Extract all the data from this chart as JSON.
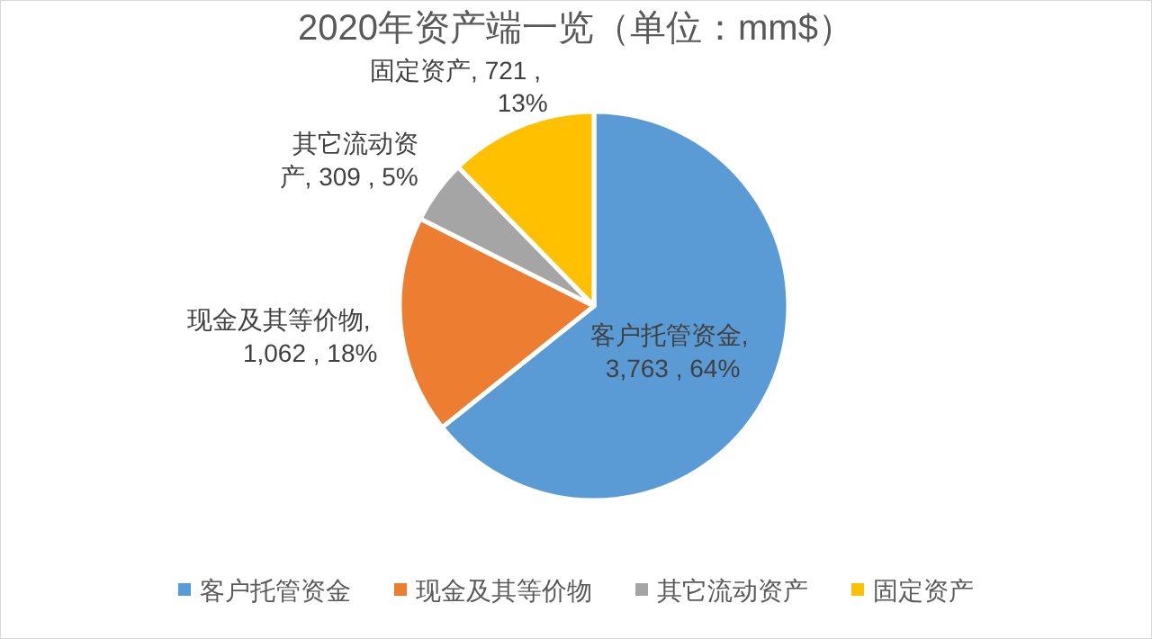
{
  "chart_data": {
    "type": "pie",
    "title": "2020年资产端一览（单位：mm$）",
    "categories": [
      "客户托管资金",
      "现金及其等价物",
      "其它流动资产",
      "固定资产"
    ],
    "values": [
      3763,
      1062,
      309,
      721
    ],
    "colors": [
      "#5b9bd5",
      "#ed7d31",
      "#a5a5a5",
      "#ffc000"
    ],
    "value_labels": [
      "客户托管资金, 3,763 , 64%",
      "现金及其等价物, 1,062 , 18%",
      "其它流动资产, 309 , 5%",
      "固定资产, 721 , 13%"
    ],
    "legend": "bottom"
  }
}
